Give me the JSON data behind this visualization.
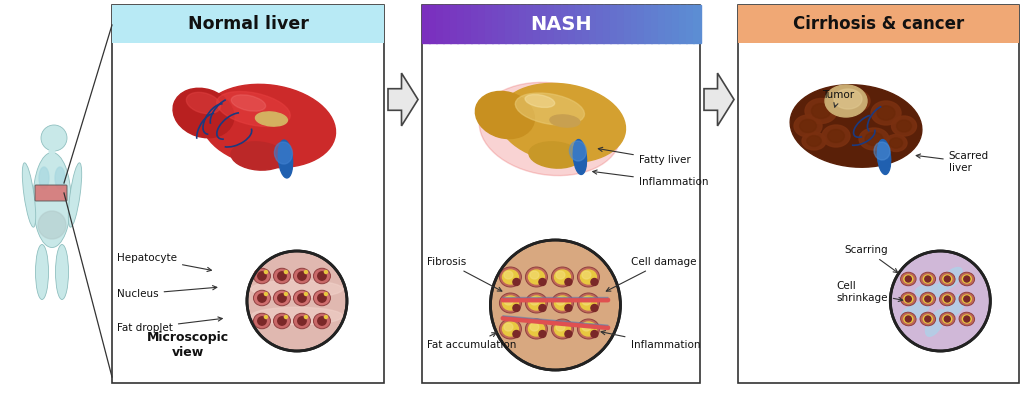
{
  "bg_color": "#ffffff",
  "panel1_title": "Normal liver",
  "panel1_title_bg": "#b8eaf5",
  "panel2_title": "NASH",
  "panel2_title_bg_left": "#7b2fbe",
  "panel2_title_bg_right": "#5b8fd4",
  "panel2_title_color": "#ffffff",
  "panel3_title": "Cirrhosis & cancer",
  "panel3_title_bg": "#f0a875",
  "panel1_labels": [
    "Hepatocyte",
    "Nucleus",
    "Fat droplet"
  ],
  "panel1_micro_label": "Microscopic\nview",
  "panel2_liver_labels": [
    "Fatty liver",
    "Inflammation"
  ],
  "panel2_micro_labels": [
    "Fibrosis",
    "Fat accumulation",
    "Cell damage",
    "Inflammation"
  ],
  "panel3_liver_labels": [
    "Tumor",
    "Scarred\nliver"
  ],
  "panel3_micro_labels": [
    "Scarring",
    "Cell\nshrinkage"
  ],
  "border_color": "#222222",
  "text_color": "#111111",
  "figsize": [
    10.24,
    3.95
  ],
  "dpi": 100
}
